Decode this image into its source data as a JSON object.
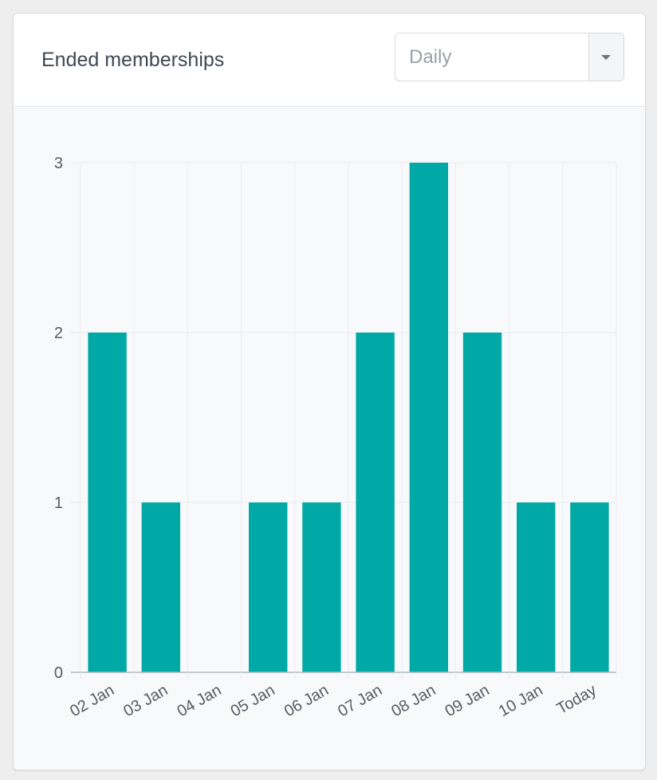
{
  "card": {
    "title": "Ended memberships"
  },
  "period_select": {
    "value": "Daily",
    "icon": "caret-down-icon"
  },
  "colors": {
    "bar": "#00a9a5",
    "grid": "#e9ecef",
    "axis": "#b5b9bd"
  },
  "chart_data": {
    "type": "bar",
    "categories": [
      "02 Jan",
      "03 Jan",
      "04 Jan",
      "05 Jan",
      "06 Jan",
      "07 Jan",
      "08 Jan",
      "09 Jan",
      "10 Jan",
      "Today"
    ],
    "values": [
      2,
      1,
      0,
      1,
      1,
      2,
      3,
      2,
      1,
      1
    ],
    "yticks": [
      0,
      1,
      2,
      3
    ],
    "ylim": [
      0,
      3
    ],
    "title": "",
    "xlabel": "",
    "ylabel": "",
    "grid": true,
    "legend": "none"
  }
}
